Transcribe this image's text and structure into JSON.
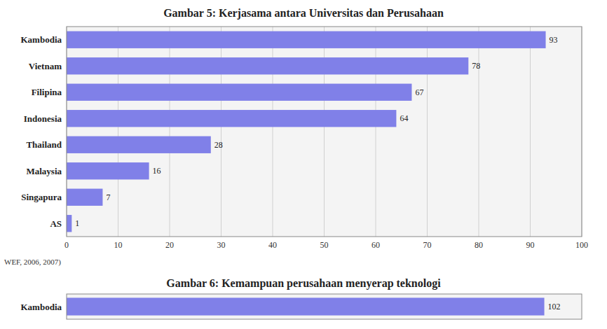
{
  "chart_data": [
    {
      "type": "bar",
      "orientation": "horizontal",
      "title": "Gambar 5: Kerjasama antara Universitas dan Perusahaan",
      "categories": [
        "AS",
        "Singapura",
        "Malaysia",
        "Thailand",
        "Indonesia",
        "Filipina",
        "Vietnam",
        "Kambodia"
      ],
      "values": [
        1,
        7,
        16,
        28,
        64,
        67,
        78,
        93
      ],
      "color": "#8080E8",
      "xlim": [
        0,
        100
      ],
      "xticks": [
        0,
        10,
        20,
        30,
        40,
        50,
        60,
        70,
        80,
        90,
        100
      ],
      "grid": true,
      "data_labels": true,
      "annotations": [
        "WEF, 2006, 2007)"
      ]
    },
    {
      "type": "bar",
      "orientation": "horizontal",
      "title": "Gambar 6: Kemampuan perusahaan menyerap teknologi",
      "categories": [
        "Kambodia"
      ],
      "values": [
        102
      ],
      "color": "#8080E8",
      "xlim": [
        0,
        110
      ],
      "grid": false,
      "tick_labels": "y",
      "data_labels": true
    }
  ]
}
